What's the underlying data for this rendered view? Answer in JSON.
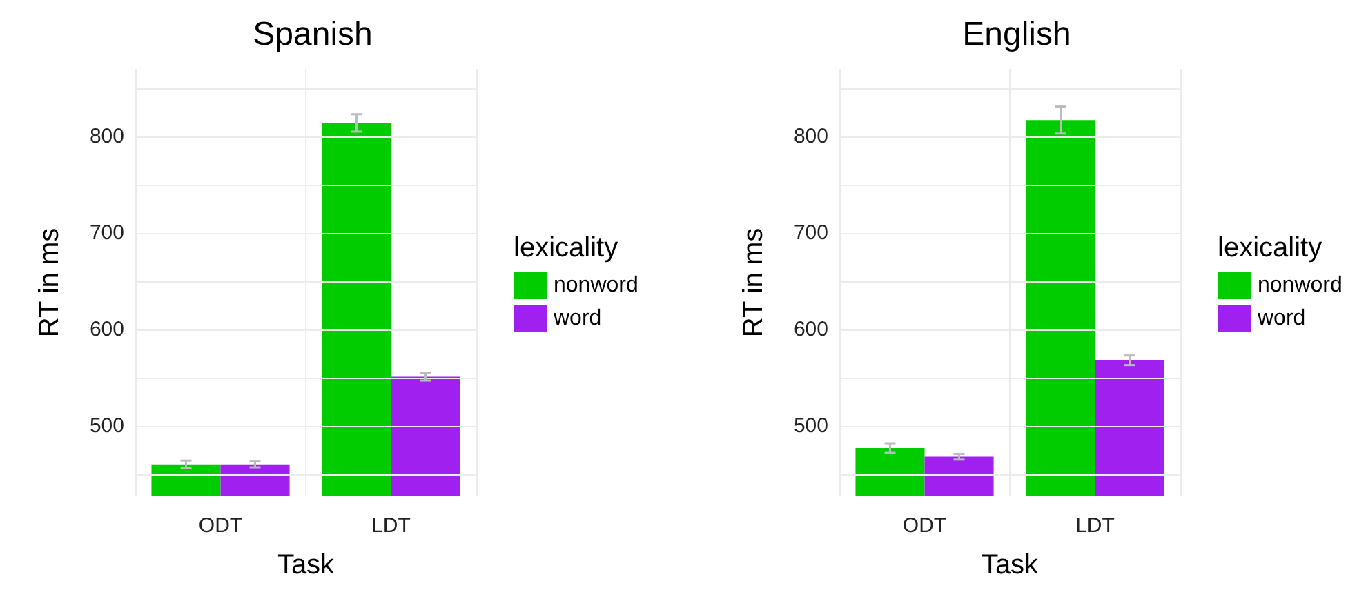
{
  "chart_data": [
    {
      "type": "bar",
      "title": "Spanish",
      "xlabel": "Task",
      "ylabel": "RT in ms",
      "legend_title": "lexicality",
      "categories": [
        "ODT",
        "LDT"
      ],
      "series": [
        {
          "name": "nonword",
          "color": "#00cc00",
          "values": [
            460,
            814
          ],
          "errors": [
            4,
            9
          ]
        },
        {
          "name": "word",
          "color": "#a020f0",
          "values": [
            460,
            551
          ],
          "errors": [
            3,
            4
          ]
        }
      ],
      "ylim": [
        427,
        870
      ],
      "yticks": [
        {
          "value": 450,
          "label": null
        },
        500,
        {
          "value": 550,
          "label": null
        },
        600,
        {
          "value": 650,
          "label": null
        },
        700,
        {
          "value": 750,
          "label": null
        },
        800,
        {
          "value": 850,
          "label": null
        }
      ],
      "grid": true,
      "legend": "right"
    },
    {
      "type": "bar",
      "title": "English",
      "xlabel": "Task",
      "ylabel": "RT in ms",
      "legend_title": "lexicality",
      "categories": [
        "ODT",
        "LDT"
      ],
      "series": [
        {
          "name": "nonword",
          "color": "#00cc00",
          "values": [
            477,
            817
          ],
          "errors": [
            5,
            14
          ]
        },
        {
          "name": "word",
          "color": "#a020f0",
          "values": [
            468,
            568
          ],
          "errors": [
            3,
            5
          ]
        }
      ],
      "ylim": [
        427,
        870
      ],
      "yticks": [
        {
          "value": 450,
          "label": null
        },
        500,
        {
          "value": 550,
          "label": null
        },
        600,
        {
          "value": 650,
          "label": null
        },
        700,
        {
          "value": 750,
          "label": null
        },
        800,
        {
          "value": 850,
          "label": null
        }
      ],
      "grid": true,
      "legend": "right"
    }
  ]
}
